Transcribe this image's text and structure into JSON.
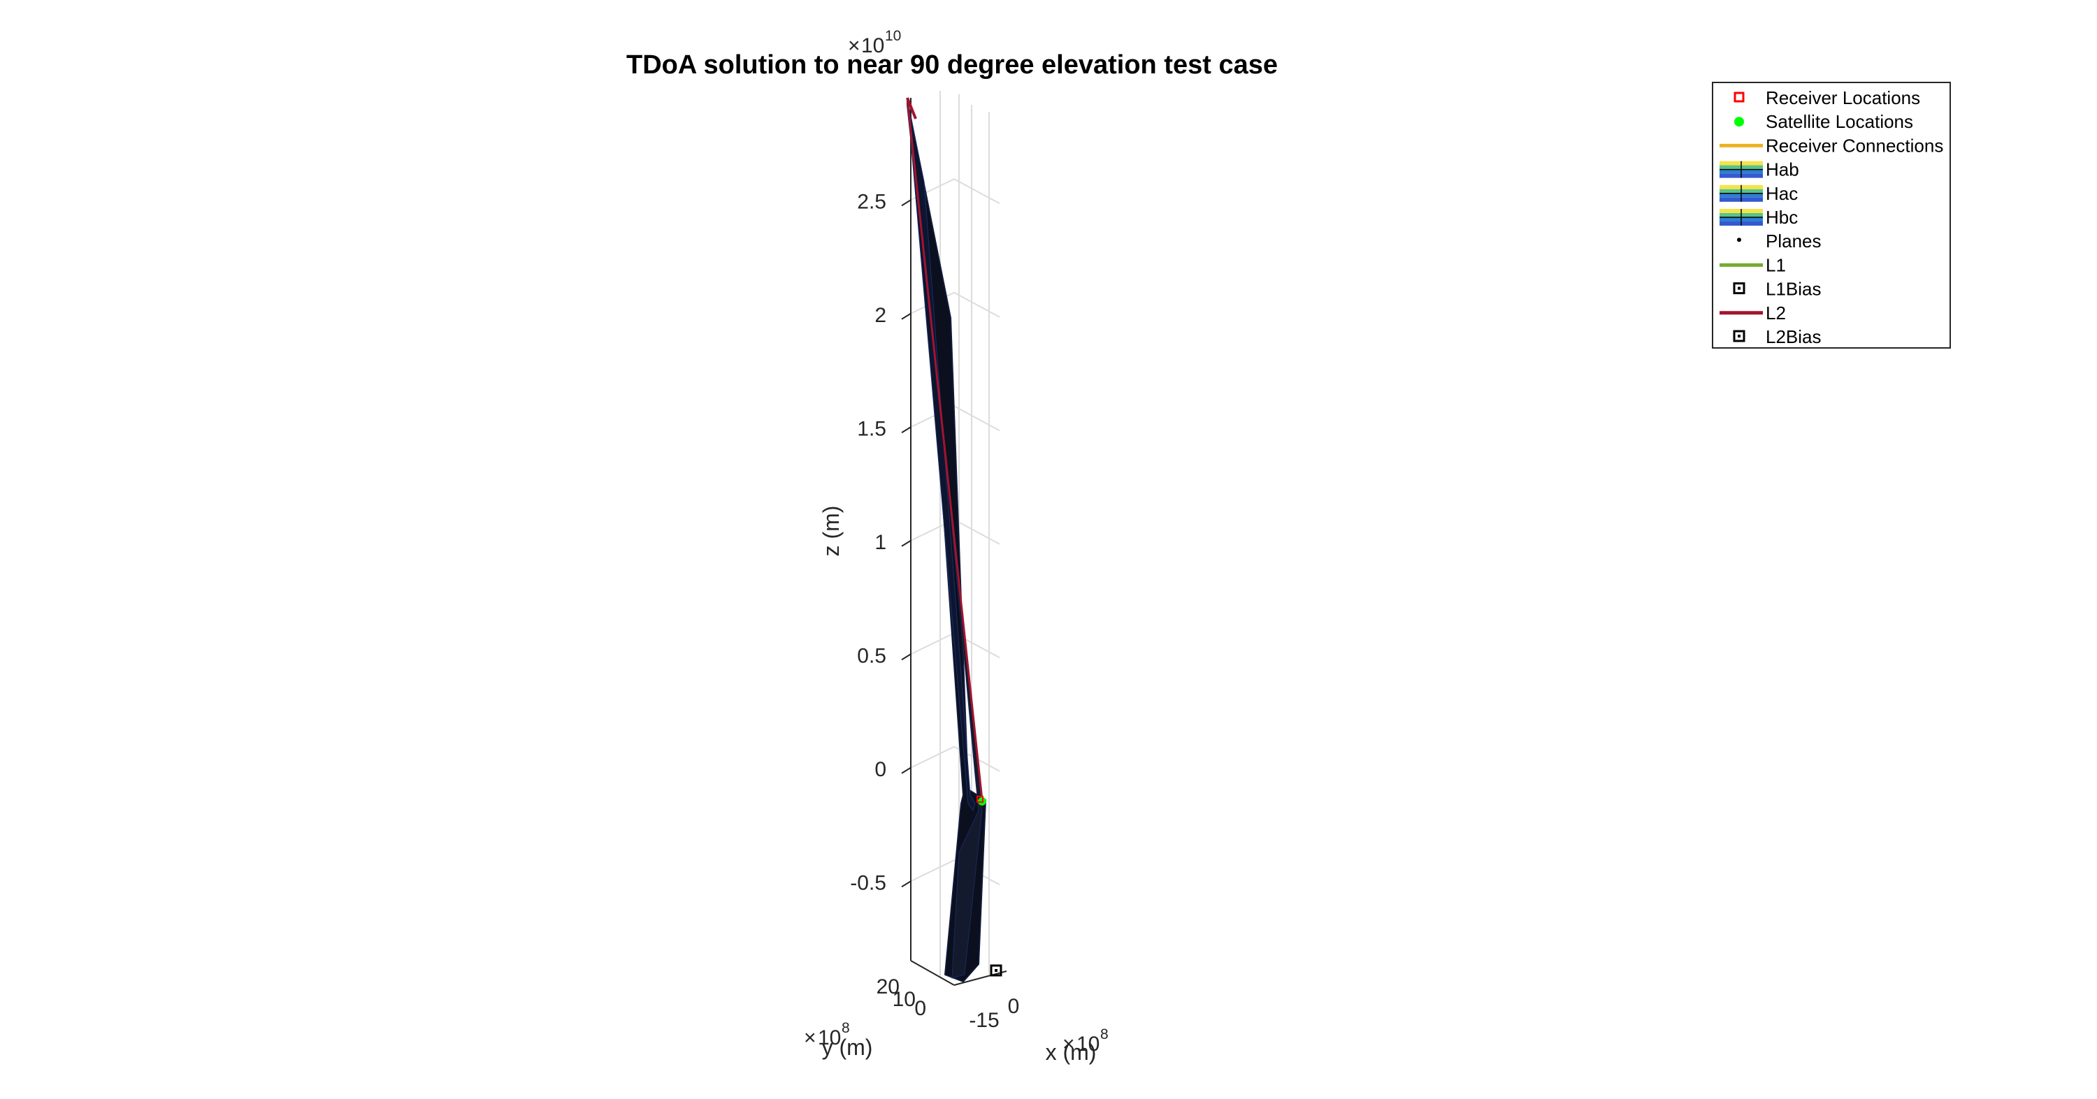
{
  "chart_data": {
    "type": "3d-surface-line",
    "title": "TDoA solution to near 90 degree elevation test case",
    "xlabel": "x (m)",
    "ylabel": "y (m)",
    "zlabel": "z (m)",
    "x_exponent": "10",
    "x_exponent_power": "8",
    "y_exponent": "10",
    "y_exponent_power": "8",
    "z_exponent": "10",
    "z_exponent_power": "10",
    "x_ticks": [
      "-15",
      "0"
    ],
    "y_ticks": [
      "20",
      "10",
      "0"
    ],
    "z_ticks": [
      "2.5",
      "2",
      "1.5",
      "1",
      "0.5",
      "0",
      "-0.5"
    ],
    "z_tick_values": [
      2.5,
      2,
      1.5,
      1,
      0.5,
      0,
      -0.5
    ],
    "zlim": [
      -0.85,
      2.95
    ],
    "grid": true,
    "legend_position": "top-right",
    "legend": [
      {
        "label": "Receiver Locations",
        "marker": "square",
        "color": "#ff0000"
      },
      {
        "label": "Satellite Locations",
        "marker": "circle",
        "color": "#00ff00"
      },
      {
        "label": "Receiver Connections",
        "marker": "line",
        "color": "#edb120"
      },
      {
        "label": "Hab",
        "marker": "surface",
        "color": "#3a6fd8"
      },
      {
        "label": "Hac",
        "marker": "surface",
        "color": "#3a6fd8"
      },
      {
        "label": "Hbc",
        "marker": "surface",
        "color": "#3a6fd8"
      },
      {
        "label": "Planes",
        "marker": "dot",
        "color": "#000000"
      },
      {
        "label": "L1",
        "marker": "line",
        "color": "#77ac30"
      },
      {
        "label": "L1Bias",
        "marker": "square-dot",
        "color": "#000000"
      },
      {
        "label": "L2",
        "marker": "line",
        "color": "#a2142f"
      },
      {
        "label": "L2Bias",
        "marker": "square-dot",
        "color": "#000000"
      }
    ]
  }
}
